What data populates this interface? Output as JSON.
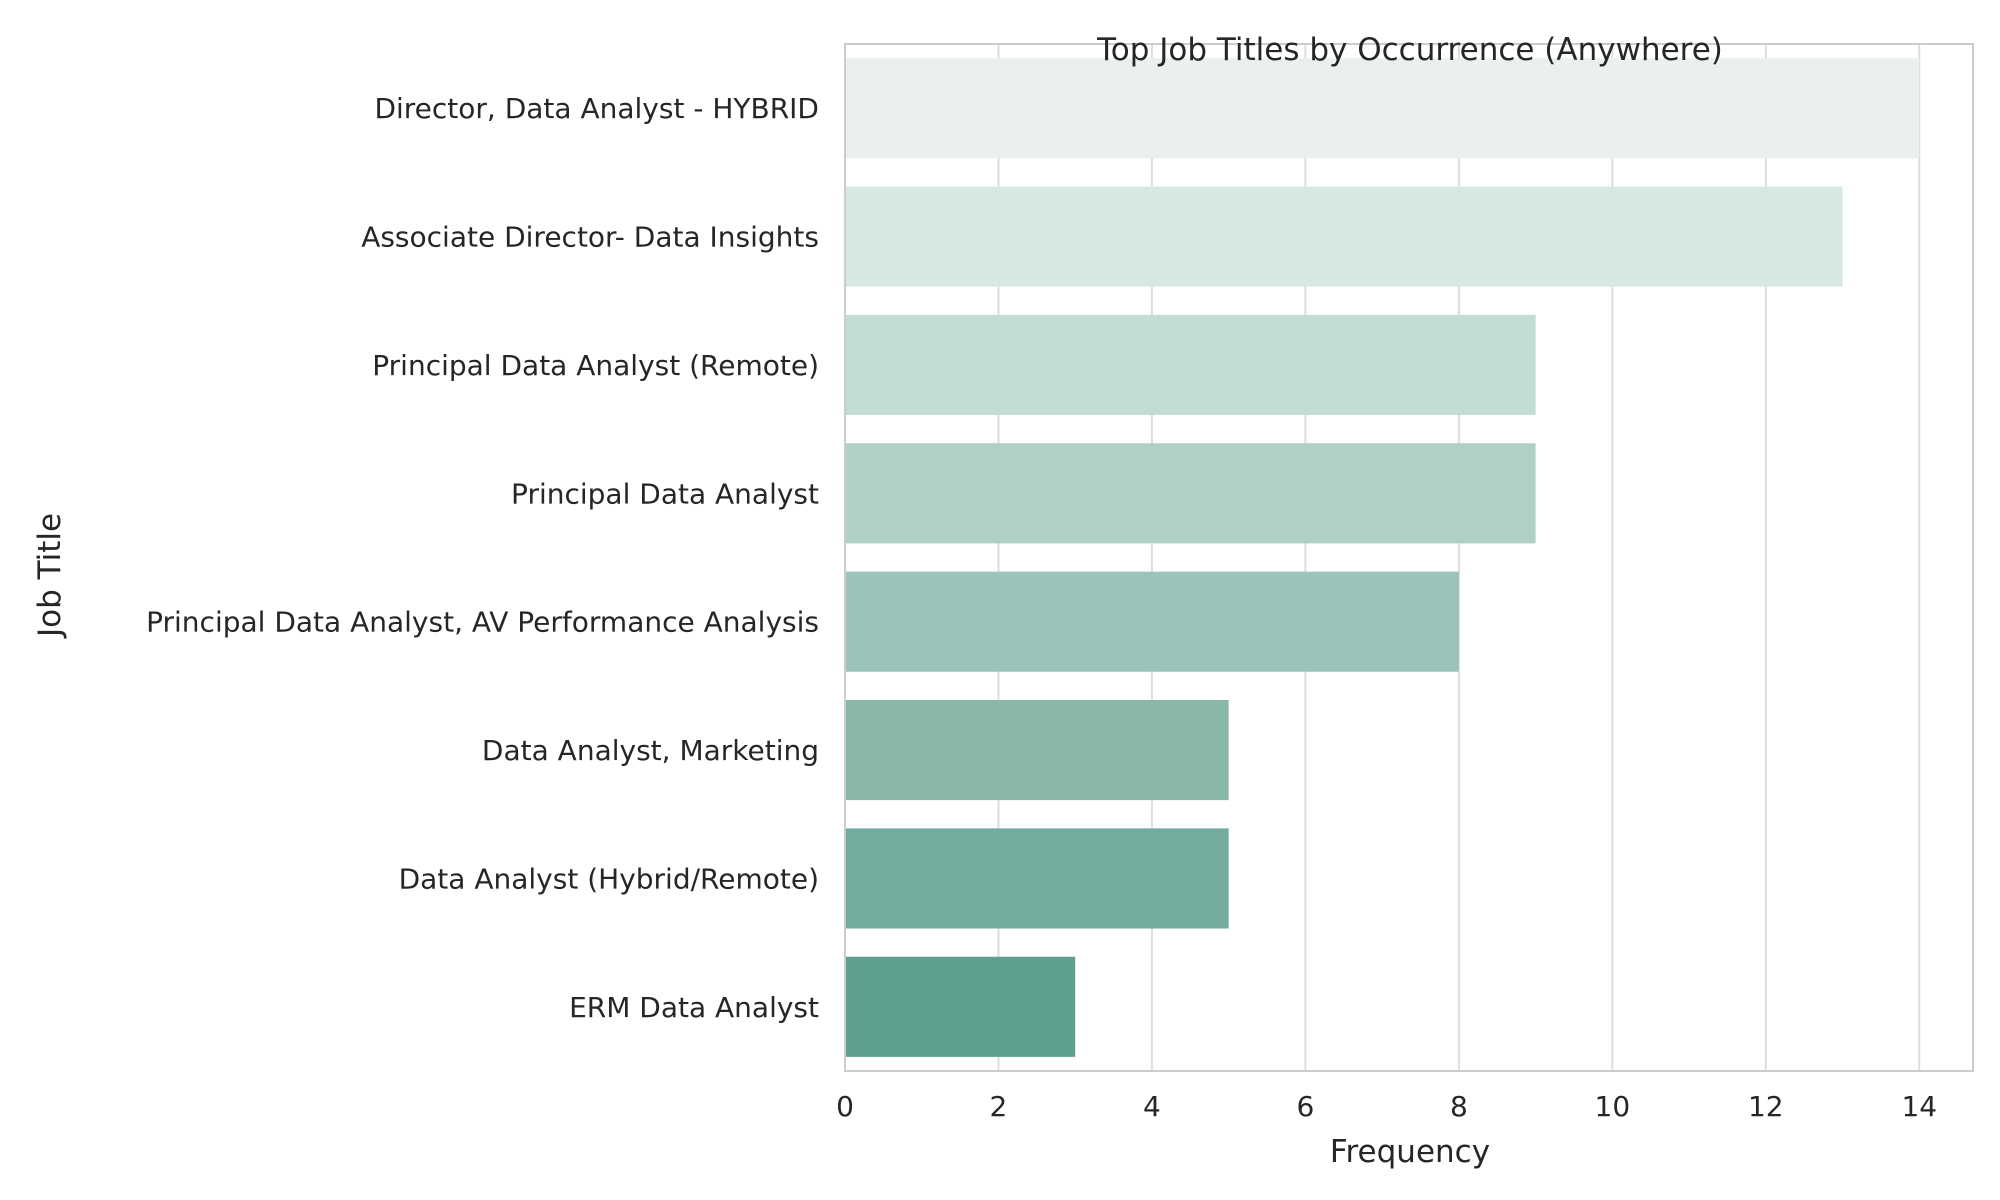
{
  "chart_data": {
    "type": "bar",
    "orientation": "horizontal",
    "title": "Top Job Titles by Occurrence (Anywhere)",
    "xlabel": "Frequency",
    "ylabel": "Job Title",
    "categories": [
      "Director, Data Analyst - HYBRID",
      "Associate Director- Data Insights",
      "Principal Data Analyst (Remote)",
      "Principal Data Analyst",
      "Principal Data Analyst, AV Performance Analysis",
      "Data Analyst, Marketing",
      "Data Analyst (Hybrid/Remote)",
      "ERM Data Analyst"
    ],
    "values": [
      14,
      13,
      9,
      9,
      8,
      5,
      5,
      3
    ],
    "xlim": [
      0,
      14.7
    ],
    "xticks": [
      0,
      2,
      4,
      6,
      8,
      10,
      12,
      14
    ],
    "grid": "vertical",
    "bar_colors": [
      "#ebf0ef",
      "#d7e8e4",
      "#c3ddd6",
      "#afcfc7",
      "#9cc3b9",
      "#89b8ab",
      "#73ab9f",
      "#5f9f90"
    ],
    "grid_color": "#dddddd",
    "spine_color": "#cccccc"
  }
}
